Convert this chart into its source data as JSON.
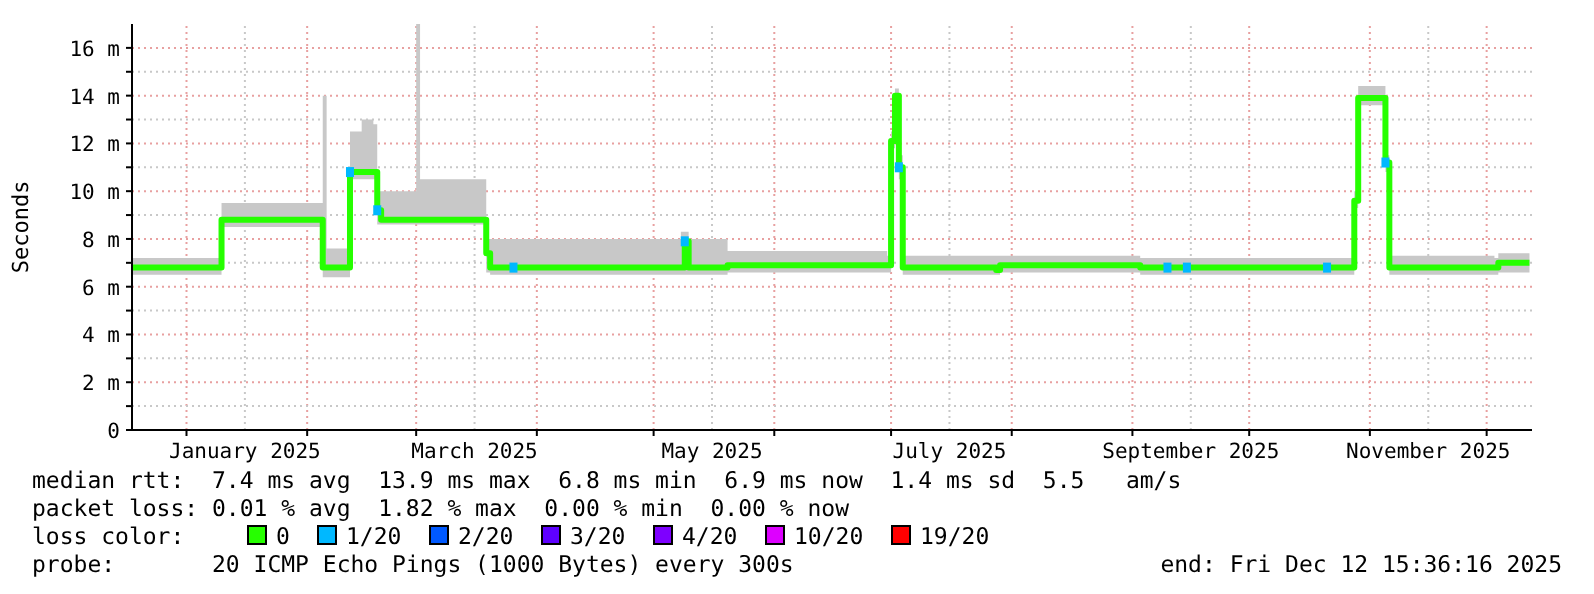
{
  "chart_data": {
    "type": "line",
    "ylabel": "Seconds",
    "xlim": [
      "2024-12-18",
      "2025-12-12T15:36"
    ],
    "xticks": [
      {
        "value": "2025-01-01",
        "label": null
      },
      {
        "value": "2025-01-16",
        "label": "January 2025"
      },
      {
        "value": "2025-02-01",
        "label": null
      },
      {
        "value": "2025-03-01",
        "label": null
      },
      {
        "value": "2025-03-16",
        "label": "March 2025"
      },
      {
        "value": "2025-04-01",
        "label": null
      },
      {
        "value": "2025-05-01",
        "label": null
      },
      {
        "value": "2025-05-16",
        "label": "May 2025"
      },
      {
        "value": "2025-06-01",
        "label": null
      },
      {
        "value": "2025-07-01",
        "label": null
      },
      {
        "value": "2025-07-16",
        "label": "July 2025"
      },
      {
        "value": "2025-08-01",
        "label": null
      },
      {
        "value": "2025-09-01",
        "label": null
      },
      {
        "value": "2025-09-16",
        "label": "September 2025"
      },
      {
        "value": "2025-10-01",
        "label": null
      },
      {
        "value": "2025-11-01",
        "label": null
      },
      {
        "value": "2025-11-16",
        "label": "November 2025"
      },
      {
        "value": "2025-12-01",
        "label": null
      }
    ],
    "ylim": [
      0,
      17
    ],
    "yticks": [
      0,
      {
        "value": 1,
        "label": null
      },
      {
        "value": 2,
        "label": "2 m"
      },
      {
        "value": 3,
        "label": null
      },
      {
        "value": 4,
        "label": "4 m"
      },
      {
        "value": 5,
        "label": null
      },
      {
        "value": 6,
        "label": "6 m"
      },
      {
        "value": 7,
        "label": null
      },
      {
        "value": 8,
        "label": "8 m"
      },
      {
        "value": 9,
        "label": null
      },
      {
        "value": 10,
        "label": "10 m"
      },
      {
        "value": 11,
        "label": null
      },
      {
        "value": 12,
        "label": "12 m"
      },
      {
        "value": 13,
        "label": null
      },
      {
        "value": 14,
        "label": "14 m"
      },
      {
        "value": 15,
        "label": null
      },
      {
        "value": 16,
        "label": "16 m"
      }
    ],
    "grid": true,
    "legend": "bottom",
    "legend_title": "loss color:",
    "series": [
      {
        "name": "0",
        "color": "#26ff00",
        "marker": "none",
        "x": [
          "2024-12-18",
          "2025-01-09",
          "2025-01-10",
          "2025-02-04",
          "2025-02-05",
          "2025-02-06",
          "2025-02-11",
          "2025-02-12",
          "2025-02-15",
          "2025-02-18",
          "2025-02-19",
          "2025-02-20",
          "2025-03-01",
          "2025-03-02",
          "2025-03-18",
          "2025-03-19",
          "2025-03-20",
          "2025-05-08",
          "2025-05-09",
          "2025-05-10",
          "2025-05-20",
          "2025-06-30",
          "2025-07-01",
          "2025-07-02",
          "2025-07-03",
          "2025-07-04",
          "2025-07-28",
          "2025-07-29",
          "2025-09-02",
          "2025-09-03",
          "2025-10-27",
          "2025-10-28",
          "2025-10-29",
          "2025-11-04",
          "2025-11-05",
          "2025-11-06",
          "2025-12-03",
          "2025-12-04",
          "2025-12-12"
        ],
        "values": [
          6.8,
          6.8,
          8.8,
          8.8,
          6.8,
          6.8,
          6.8,
          10.8,
          10.8,
          10.8,
          9.2,
          8.8,
          8.8,
          8.8,
          8.8,
          7.4,
          6.8,
          6.8,
          7.9,
          6.8,
          6.9,
          6.9,
          12.1,
          14.0,
          11.0,
          6.8,
          6.7,
          6.9,
          6.9,
          6.8,
          6.8,
          9.6,
          13.9,
          13.9,
          11.2,
          6.8,
          6.8,
          7.0,
          7.0
        ],
        "lower": [
          6.5,
          6.5,
          8.5,
          8.5,
          6.4,
          6.4,
          6.4,
          10.5,
          10.5,
          10.5,
          8.6,
          8.6,
          8.6,
          8.6,
          8.6,
          6.6,
          6.5,
          6.5,
          6.5,
          6.5,
          6.6,
          6.6,
          11.8,
          13.6,
          10.5,
          6.5,
          6.5,
          6.6,
          6.6,
          6.5,
          6.5,
          9.3,
          13.6,
          13.6,
          10.8,
          6.5,
          6.5,
          6.6,
          6.6
        ],
        "upper": [
          7.2,
          7.2,
          9.5,
          9.5,
          14.0,
          7.6,
          7.6,
          12.5,
          13.0,
          12.8,
          10.0,
          10.0,
          17.0,
          10.5,
          10.5,
          8.0,
          8.0,
          8.3,
          8.3,
          8.0,
          7.5,
          7.3,
          12.5,
          14.3,
          11.5,
          7.3,
          7.3,
          7.3,
          7.3,
          7.2,
          7.2,
          10.0,
          14.4,
          14.4,
          11.5,
          7.3,
          7.2,
          7.4,
          7.4
        ]
      },
      {
        "name": "1/20",
        "color": "#00b8ff",
        "type": "scatter",
        "marker": "square",
        "x": [
          "2025-02-12",
          "2025-02-19",
          "2025-03-26",
          "2025-05-09",
          "2025-07-03",
          "2025-09-10",
          "2025-09-15",
          "2025-10-21",
          "2025-11-05"
        ],
        "values": [
          10.8,
          9.2,
          6.8,
          7.9,
          11.0,
          6.8,
          6.8,
          6.8,
          11.2
        ]
      },
      {
        "name": "2/20",
        "color": "#0059ff",
        "type": "scatter",
        "marker": "square"
      },
      {
        "name": "3/20",
        "color": "#5e00ff",
        "type": "scatter",
        "marker": "square"
      },
      {
        "name": "4/20",
        "color": "#7e00ff",
        "type": "scatter",
        "marker": "square"
      },
      {
        "name": "10/20",
        "color": "#dd00ff",
        "type": "scatter",
        "marker": "square"
      },
      {
        "name": "19/20",
        "color": "#ff0000",
        "type": "scatter",
        "marker": "square"
      }
    ],
    "annotations": [
      "median rtt:  7.4 ms avg  13.9 ms max  6.8 ms min  6.9 ms now  1.4 ms sd  5.5   am/s",
      "packet loss: 0.01 % avg  1.82 % max  0.00 % min  0.00 % now",
      "probe:       20 ICMP Echo Pings (1000 Bytes) every 300s",
      "end: Fri Dec 12 15:36:16 2025"
    ]
  }
}
